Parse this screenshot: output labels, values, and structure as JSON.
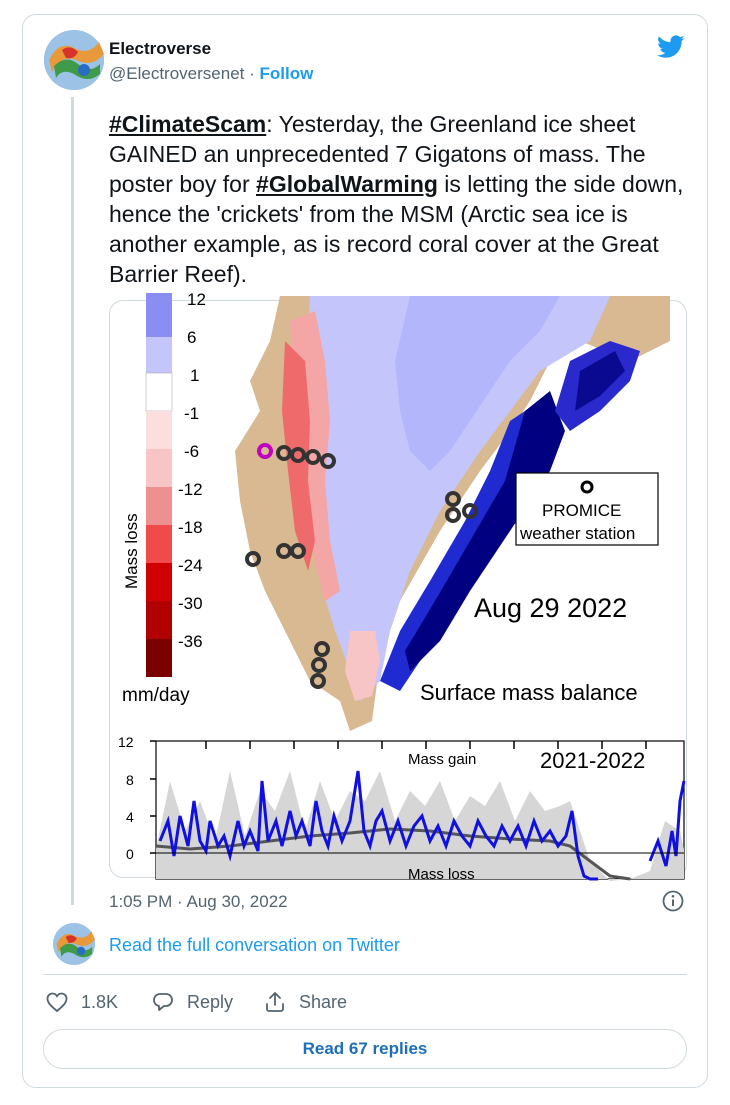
{
  "author": {
    "name": "Electroverse",
    "handle": "@Electroversenet",
    "separator": " · ",
    "follow_label": "Follow"
  },
  "tweet": {
    "hashtag1": "#ClimateScam",
    "part1": ": Yesterday, the Greenland ice sheet GAINED an unprecedented 7 Gigatons of mass. The poster boy for ",
    "hashtag2": "#GlobalWarming",
    "part2": " is letting the side down, hence the 'crickets' from the MSM (Arctic sea ice is another example, as is record coral cover at the Great Barrier Reef).",
    "timestamp": "1:05 PM · Aug 30, 2022"
  },
  "media": {
    "colorbar_label": "Mass loss",
    "colorbar_unit": "mm/day",
    "colorbar_ticks": [
      "12",
      "6",
      "1",
      "-1",
      "-6",
      "-12",
      "-18",
      "-24",
      "-30",
      "-36"
    ],
    "legend_label_1": "PROMICE",
    "legend_label_2": "weather station",
    "date": "Aug 29 2022",
    "map_title": "Surface mass balance",
    "timeseries_title": "2021-2022",
    "timeseries_top_label": "Mass gain",
    "timeseries_bottom_label": "Mass loss",
    "timeseries_yticks": [
      "12",
      "8",
      "4",
      "0"
    ],
    "colors": {
      "gain_dark": "#8a8ef2",
      "gain_light": "#c4c6fb",
      "loss_light": "#f7c5c5",
      "loss_mid": "#ef6b6b",
      "loss_dark": "#c10000",
      "loss_darkest": "#7a0000",
      "land": "#d9b991",
      "series_line": "#1010e0"
    }
  },
  "links": {
    "read_full": "Read the full conversation on Twitter",
    "read_replies": "Read 67 replies"
  },
  "actions": {
    "likes": "1.8K",
    "reply": "Reply",
    "share": "Share"
  }
}
